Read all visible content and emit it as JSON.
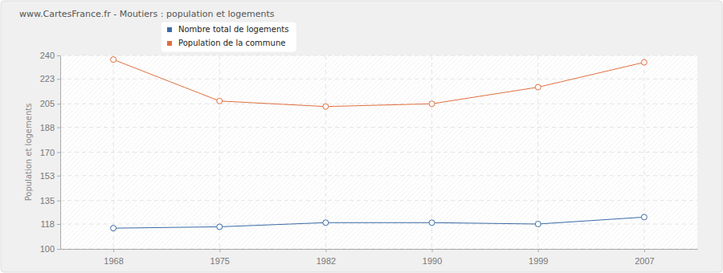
{
  "chart_data": {
    "type": "line",
    "title": "www.CartesFrance.fr - Moutiers : population et logements",
    "y_label": "Population et logements",
    "categories": [
      "1968",
      "1975",
      "1982",
      "1990",
      "1999",
      "2007"
    ],
    "series": [
      {
        "name": "Nombre total de logements",
        "color": "#3b6ba5",
        "marker": "circle",
        "values": [
          115,
          116,
          119,
          119,
          118,
          123
        ]
      },
      {
        "name": "Population de la commune",
        "color": "#e0703f",
        "marker": "circle",
        "values": [
          237,
          207,
          203,
          205,
          217,
          235
        ]
      }
    ],
    "ylim": [
      100,
      240
    ],
    "yticks": [
      100,
      118,
      135,
      153,
      170,
      188,
      205,
      223,
      240
    ],
    "grid": true,
    "legend": "top-left"
  }
}
